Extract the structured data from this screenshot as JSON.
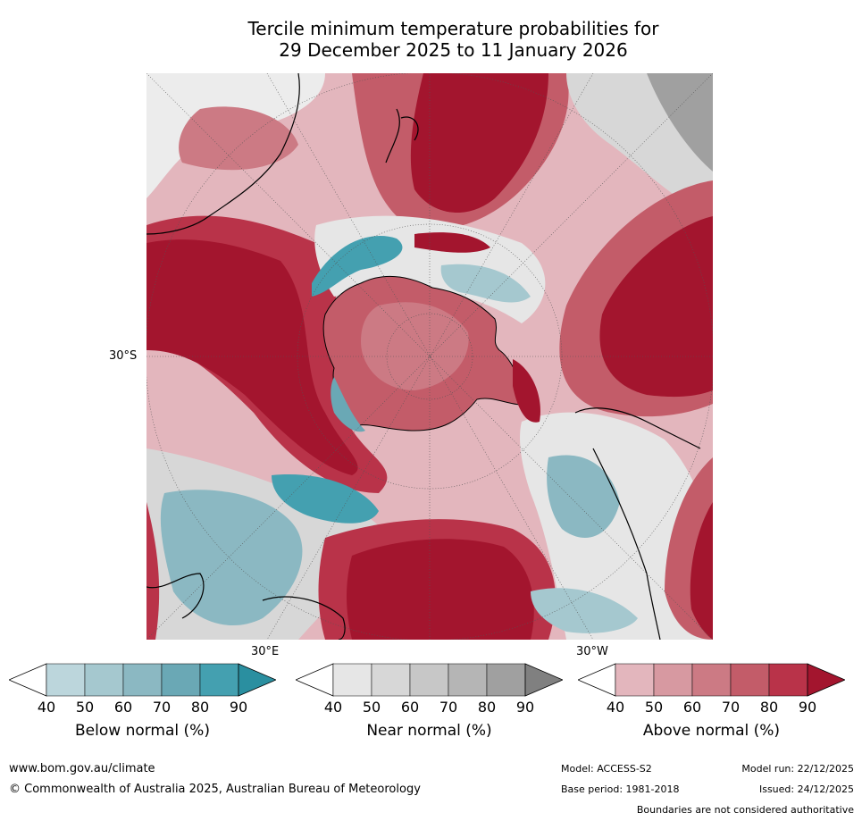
{
  "title": {
    "line1": "Tercile minimum temperature probabilities for",
    "line2": "29 December 2025 to 11 January 2026"
  },
  "map": {
    "projection": "south-polar-stereographic",
    "lat_label": "30°S",
    "lon_label_east": "30°E",
    "lon_label_west": "30°W"
  },
  "legends": [
    {
      "title": "Below normal (%)",
      "ticks": [
        "40",
        "50",
        "60",
        "70",
        "80",
        "90"
      ],
      "colors": [
        "#bcd6dc",
        "#a5c8cf",
        "#8bb8c2",
        "#6aa8b5",
        "#44a0b0",
        "#2a8fa0"
      ]
    },
    {
      "title": "Near normal (%)",
      "ticks": [
        "40",
        "50",
        "60",
        "70",
        "80",
        "90"
      ],
      "colors": [
        "#e6e6e6",
        "#d7d7d7",
        "#c7c7c7",
        "#b5b5b5",
        "#a0a0a0",
        "#808080"
      ]
    },
    {
      "title": "Above normal (%)",
      "ticks": [
        "40",
        "50",
        "60",
        "70",
        "80",
        "90"
      ],
      "colors": [
        "#e3b6bd",
        "#d799a1",
        "#cc7a84",
        "#c35c69",
        "#b93349",
        "#a3152e"
      ]
    }
  ],
  "footer": {
    "url": "www.bom.gov.au/climate",
    "copyright": "© Commonwealth of Australia 2025, Australian Bureau of Meteorology",
    "model": "Model: ACCESS-S2",
    "model_run": "Model run: 22/12/2025",
    "base_period": "Base period: 1981-2018",
    "issued": "Issued: 24/12/2025",
    "disclaimer": "Boundaries are not considered authoritative"
  }
}
